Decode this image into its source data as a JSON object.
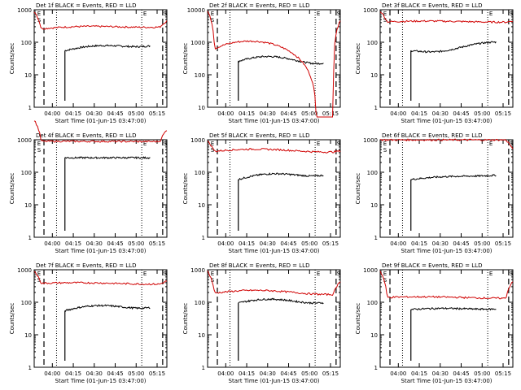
{
  "figure": {
    "ylabel": "Counts/sec",
    "xlabel": "Start Time (01-Jun-15 03:47:00)"
  },
  "chart_data": [
    {
      "type": "line",
      "title": "Det 1f BLACK = Events, RED = LLD",
      "xlabel": "Start Time (01-Jun-15 03:47:00)",
      "ylabel": "Counts/sec",
      "yscale": "log",
      "ylim": [
        1,
        1000
      ],
      "xlim_minutes": [
        0,
        95
      ],
      "x_tick_labels": [
        "04:00",
        "04:15",
        "04:30",
        "04:45",
        "05:00",
        "05:15"
      ],
      "y_tick_labels": [
        "1",
        "10",
        "100",
        "1000"
      ],
      "markers": {
        "dashed_minutes": [
          7,
          92
        ],
        "dotted_minutes": [
          16,
          77
        ],
        "labels": [
          "E",
          "S"
        ]
      },
      "series": [
        {
          "name": "Events",
          "color": "#000000",
          "start": 22,
          "end": 83,
          "base": 55,
          "end_value": 90,
          "bump": 1.15
        },
        {
          "name": "LLD",
          "color": "#d00000",
          "start": 0,
          "end": 95,
          "base": 250,
          "edge": 900,
          "end_value": 330,
          "bump": 1.1
        }
      ]
    },
    {
      "type": "line",
      "title": "Det 2f BLACK = Events, RED = LLD",
      "xlabel": "Start Time (01-Jun-15 03:47:00)",
      "ylabel": "Counts/sec",
      "yscale": "log",
      "ylim": [
        10,
        10000
      ],
      "xlim_minutes": [
        0,
        95
      ],
      "x_tick_labels": [
        "04:00",
        "04:15",
        "04:30",
        "04:45",
        "05:00",
        "05:15"
      ],
      "y_tick_labels": [
        "10",
        "100",
        "1000",
        "10000"
      ],
      "markers": {
        "dashed_minutes": [
          7,
          92
        ],
        "dotted_minutes": [
          16,
          77
        ],
        "labels": [
          "E",
          "S"
        ]
      },
      "series": [
        {
          "name": "Events",
          "color": "#000000",
          "start": 22,
          "end": 83,
          "base": 260,
          "end_value": 320,
          "bump": 1.3
        },
        {
          "name": "LLD",
          "color": "#d00000",
          "start": 0,
          "end": 95,
          "base": 480,
          "edge": 9000,
          "end_value": 520,
          "bump": 2.2
        }
      ]
    },
    {
      "type": "line",
      "title": "Det 3f BLACK = Events, RED = LLD",
      "xlabel": "Start Time (01-Jun-15 03:47:00)",
      "ylabel": "Counts/sec",
      "yscale": "log",
      "ylim": [
        1,
        1000
      ],
      "xlim_minutes": [
        0,
        95
      ],
      "x_tick_labels": [
        "04:00",
        "04:15",
        "04:30",
        "04:45",
        "05:00",
        "05:15"
      ],
      "y_tick_labels": [
        "1",
        "10",
        "100",
        "1000"
      ],
      "markers": {
        "dashed_minutes": [
          7,
          92
        ],
        "dotted_minutes": [
          16,
          77
        ],
        "labels": [
          "E",
          "S"
        ]
      },
      "series": [
        {
          "name": "Events",
          "color": "#000000",
          "start": 22,
          "end": 83,
          "base": 55,
          "end_value": 85,
          "bump": 0.8
        },
        {
          "name": "LLD",
          "color": "#d00000",
          "start": 0,
          "end": 95,
          "base": 420,
          "edge": 900,
          "end_value": 440,
          "bump": 1.05
        }
      ]
    },
    {
      "type": "line",
      "title": "Det 4f BLACK = Events, RED = LLD",
      "xlabel": "Start Time (01-Jun-15 03:47:00)",
      "ylabel": "Counts/sec",
      "yscale": "log",
      "ylim": [
        1,
        1000
      ],
      "xlim_minutes": [
        0,
        95
      ],
      "x_tick_labels": [
        "04:00",
        "04:15",
        "04:30",
        "04:45",
        "05:00",
        "05:15"
      ],
      "y_tick_labels": [
        "1",
        "10",
        "100",
        "1000"
      ],
      "markers": {
        "dashed_minutes": [
          7,
          92
        ],
        "dotted_minutes": [
          16,
          77
        ],
        "labels": [
          "E",
          "S"
        ]
      },
      "series": [
        {
          "name": "Events",
          "color": "#000000",
          "start": 22,
          "end": 83,
          "base": 280,
          "end_value": 280,
          "bump": 1.0
        },
        {
          "name": "LLD",
          "color": "#d00000",
          "start": 0,
          "end": 95,
          "base": 900,
          "edge": 4000,
          "end_value": 880,
          "bump": 1.0
        }
      ]
    },
    {
      "type": "line",
      "title": "Det 5f BLACK = Events, RED = LLD",
      "xlabel": "Start Time (01-Jun-15 03:47:00)",
      "ylabel": "Counts/sec",
      "yscale": "log",
      "ylim": [
        1,
        1000
      ],
      "xlim_minutes": [
        0,
        95
      ],
      "x_tick_labels": [
        "04:00",
        "04:15",
        "04:30",
        "04:45",
        "05:00",
        "05:15"
      ],
      "y_tick_labels": [
        "1",
        "10",
        "100",
        "1000"
      ],
      "markers": {
        "dashed_minutes": [
          7,
          92
        ],
        "dotted_minutes": [
          16,
          77
        ],
        "labels": [
          "E",
          "S"
        ]
      },
      "series": [
        {
          "name": "Events",
          "color": "#000000",
          "start": 22,
          "end": 83,
          "base": 60,
          "end_value": 100,
          "bump": 1.2
        },
        {
          "name": "LLD",
          "color": "#d00000",
          "start": 0,
          "end": 95,
          "base": 420,
          "edge": 900,
          "end_value": 500,
          "bump": 1.15
        }
      ]
    },
    {
      "type": "line",
      "title": "Det 6f BLACK = Events, RED = LLD",
      "xlabel": "Start Time (01-Jun-15 03:47:00)",
      "ylabel": "Counts/sec",
      "yscale": "log",
      "ylim": [
        1,
        1000
      ],
      "xlim_minutes": [
        0,
        95
      ],
      "x_tick_labels": [
        "04:00",
        "04:15",
        "04:30",
        "04:45",
        "05:00",
        "05:15"
      ],
      "y_tick_labels": [
        "1",
        "10",
        "100",
        "1000"
      ],
      "markers": {
        "dashed_minutes": [
          7,
          92
        ],
        "dotted_minutes": [
          16,
          77
        ],
        "labels": [
          "E",
          "S"
        ]
      },
      "series": [
        {
          "name": "Events",
          "color": "#000000",
          "start": 22,
          "end": 83,
          "base": 60,
          "end_value": 85,
          "bump": 1.05
        },
        {
          "name": "LLD",
          "color": "#d00000",
          "start": 0,
          "end": 95,
          "base": 990,
          "edge": 1000,
          "end_value": 990,
          "bump": 1.0
        }
      ]
    },
    {
      "type": "line",
      "title": "Det 7f BLACK = Events, RED = LLD",
      "xlabel": "Start Time (01-Jun-15 03:47:00)",
      "ylabel": "Counts/sec",
      "yscale": "log",
      "ylim": [
        1,
        1000
      ],
      "xlim_minutes": [
        0,
        95
      ],
      "x_tick_labels": [
        "04:00",
        "04:15",
        "04:30",
        "04:45",
        "05:00",
        "05:15"
      ],
      "y_tick_labels": [
        "1",
        "10",
        "100",
        "1000"
      ],
      "markers": {
        "dashed_minutes": [
          7,
          92
        ],
        "dotted_minutes": [
          16,
          77
        ],
        "labels": [
          "E",
          "S"
        ]
      },
      "series": [
        {
          "name": "Events",
          "color": "#000000",
          "start": 22,
          "end": 83,
          "base": 55,
          "end_value": 85,
          "bump": 1.2
        },
        {
          "name": "LLD",
          "color": "#d00000",
          "start": 0,
          "end": 95,
          "base": 380,
          "edge": 900,
          "end_value": 380,
          "bump": 1.05
        }
      ]
    },
    {
      "type": "line",
      "title": "Det 8f BLACK = Events, RED = LLD",
      "xlabel": "Start Time (01-Jun-15 03:47:00)",
      "ylabel": "Counts/sec",
      "yscale": "log",
      "ylim": [
        1,
        1000
      ],
      "xlim_minutes": [
        0,
        95
      ],
      "x_tick_labels": [
        "04:00",
        "04:15",
        "04:30",
        "04:45",
        "05:00",
        "05:15"
      ],
      "y_tick_labels": [
        "1",
        "10",
        "100",
        "1000"
      ],
      "markers": {
        "dashed_minutes": [
          7,
          92
        ],
        "dotted_minutes": [
          16,
          77
        ],
        "labels": [
          "E",
          "S"
        ]
      },
      "series": [
        {
          "name": "Events",
          "color": "#000000",
          "start": 22,
          "end": 83,
          "base": 95,
          "end_value": 120,
          "bump": 1.2
        },
        {
          "name": "LLD",
          "color": "#d00000",
          "start": 0,
          "end": 95,
          "base": 180,
          "edge": 900,
          "end_value": 220,
          "bump": 1.2
        }
      ]
    },
    {
      "type": "line",
      "title": "Det 9f BLACK = Events, RED = LLD",
      "xlabel": "Start Time (01-Jun-15 03:47:00)",
      "ylabel": "Counts/sec",
      "yscale": "log",
      "ylim": [
        1,
        1000
      ],
      "xlim_minutes": [
        0,
        95
      ],
      "x_tick_labels": [
        "04:00",
        "04:15",
        "04:30",
        "04:45",
        "05:00",
        "05:15"
      ],
      "y_tick_labels": [
        "1",
        "10",
        "100",
        "1000"
      ],
      "markers": {
        "dashed_minutes": [
          7,
          92
        ],
        "dotted_minutes": [
          16,
          77
        ],
        "labels": [
          "E",
          "S"
        ]
      },
      "series": [
        {
          "name": "Events",
          "color": "#000000",
          "start": 22,
          "end": 83,
          "base": 60,
          "end_value": 65,
          "bump": 1.05
        },
        {
          "name": "LLD",
          "color": "#d00000",
          "start": 0,
          "end": 95,
          "base": 140,
          "edge": 900,
          "end_value": 140,
          "bump": 1.05
        }
      ]
    }
  ]
}
